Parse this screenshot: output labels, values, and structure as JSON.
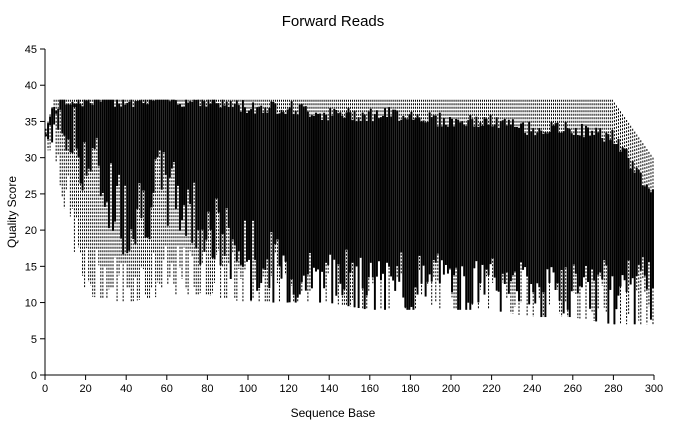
{
  "chart_data": {
    "type": "boxplot",
    "title": "Forward Reads",
    "xlabel": "Sequence Base",
    "ylabel": "Quality Score",
    "xlim": [
      0,
      300
    ],
    "ylim": [
      0,
      45
    ],
    "x_ticks": [
      0,
      20,
      40,
      60,
      80,
      100,
      120,
      140,
      160,
      180,
      200,
      220,
      240,
      260,
      280,
      300
    ],
    "y_ticks": [
      0,
      5,
      10,
      15,
      20,
      25,
      30,
      35,
      40,
      45
    ],
    "grid": false,
    "legend": "none",
    "colors": {
      "box_fill": "#000000",
      "whisker": "#000000"
    },
    "profile": [
      {
        "x": 1,
        "lower_whisker": 31,
        "q1": 33,
        "median": 34,
        "q3": 34,
        "upper_whisker": 34
      },
      {
        "x": 5,
        "lower_whisker": 31,
        "q1": 34,
        "median": 36,
        "q3": 37,
        "upper_whisker": 38
      },
      {
        "x": 10,
        "lower_whisker": 23,
        "q1": 34,
        "median": 37,
        "q3": 38,
        "upper_whisker": 38
      },
      {
        "x": 20,
        "lower_whisker": 11,
        "q1": 30,
        "median": 37,
        "q3": 38,
        "upper_whisker": 38
      },
      {
        "x": 40,
        "lower_whisker": 10,
        "q1": 22,
        "median": 36,
        "q3": 38,
        "upper_whisker": 38
      },
      {
        "x": 60,
        "lower_whisker": 11,
        "q1": 26,
        "median": 36,
        "q3": 38,
        "upper_whisker": 38
      },
      {
        "x": 80,
        "lower_whisker": 11,
        "q1": 20,
        "median": 35,
        "q3": 38,
        "upper_whisker": 38
      },
      {
        "x": 100,
        "lower_whisker": 10,
        "q1": 16,
        "median": 32,
        "q3": 37,
        "upper_whisker": 38
      },
      {
        "x": 120,
        "lower_whisker": 10,
        "q1": 13,
        "median": 30,
        "q3": 37,
        "upper_whisker": 38
      },
      {
        "x": 140,
        "lower_whisker": 10,
        "q1": 12,
        "median": 30,
        "q3": 36,
        "upper_whisker": 38
      },
      {
        "x": 160,
        "lower_whisker": 9,
        "q1": 11,
        "median": 29,
        "q3": 36,
        "upper_whisker": 38
      },
      {
        "x": 180,
        "lower_whisker": 9,
        "q1": 11,
        "median": 28,
        "q3": 36,
        "upper_whisker": 38
      },
      {
        "x": 200,
        "lower_whisker": 9,
        "q1": 11,
        "median": 27,
        "q3": 35,
        "upper_whisker": 38
      },
      {
        "x": 220,
        "lower_whisker": 9,
        "q1": 11,
        "median": 26,
        "q3": 35,
        "upper_whisker": 38
      },
      {
        "x": 240,
        "lower_whisker": 8,
        "q1": 10,
        "median": 25,
        "q3": 34,
        "upper_whisker": 38
      },
      {
        "x": 260,
        "lower_whisker": 8,
        "q1": 10,
        "median": 24,
        "q3": 34,
        "upper_whisker": 38
      },
      {
        "x": 280,
        "lower_whisker": 7,
        "q1": 10,
        "median": 21,
        "q3": 33,
        "upper_whisker": 38
      },
      {
        "x": 300,
        "lower_whisker": 7,
        "q1": 11,
        "median": 15,
        "q3": 25,
        "upper_whisker": 30
      }
    ]
  }
}
